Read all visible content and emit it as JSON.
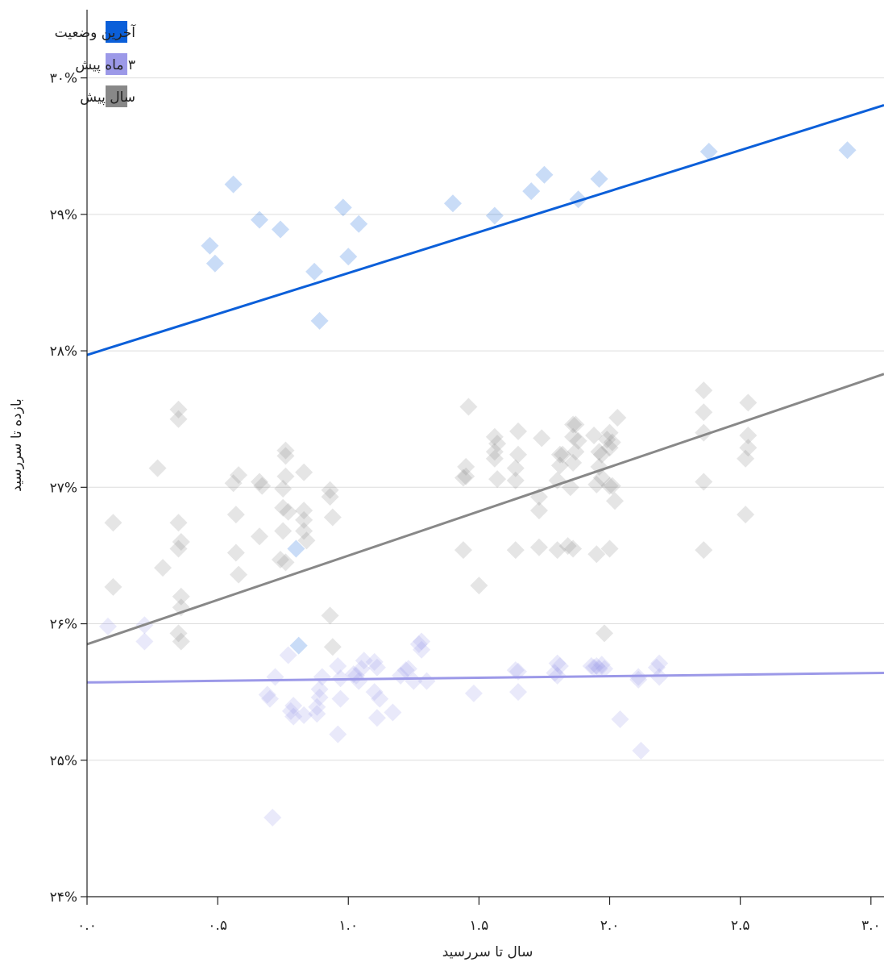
{
  "chart_data": {
    "type": "scatter",
    "xlabel": "سال تا سررسید",
    "ylabel": "بازده تا سررسید",
    "xlim": [
      0,
      3.05
    ],
    "ylim": [
      24,
      30.5
    ],
    "x_ticks": [
      {
        "value": 0.0,
        "label": "۰.۰"
      },
      {
        "value": 0.5,
        "label": "۰.۵"
      },
      {
        "value": 1.0,
        "label": "۱.۰"
      },
      {
        "value": 1.5,
        "label": "۱.۵"
      },
      {
        "value": 2.0,
        "label": "۲.۰"
      },
      {
        "value": 2.5,
        "label": "۲.۵"
      },
      {
        "value": 3.0,
        "label": "۳.۰"
      }
    ],
    "y_ticks": [
      {
        "value": 24,
        "label": "۲۴%"
      },
      {
        "value": 25,
        "label": "۲۵%"
      },
      {
        "value": 26,
        "label": "۲۶%"
      },
      {
        "value": 27,
        "label": "۲۷%"
      },
      {
        "value": 28,
        "label": "۲۸%"
      },
      {
        "value": 29,
        "label": "۲۹%"
      },
      {
        "value": 30,
        "label": "۳۰%"
      }
    ],
    "grid": "horizontal",
    "legend_position": "top-left",
    "series": [
      {
        "name": "آخرین وضعیت",
        "color": "#0b5fd9",
        "marker": "diamond",
        "marker_opacity": 0.22,
        "trend": [
          [
            0,
            27.97
          ],
          [
            3.05,
            29.8
          ]
        ],
        "points": [
          [
            0.47,
            28.77
          ],
          [
            0.49,
            28.64
          ],
          [
            0.56,
            29.22
          ],
          [
            0.66,
            28.96
          ],
          [
            0.74,
            28.89
          ],
          [
            0.87,
            28.58
          ],
          [
            0.89,
            28.22
          ],
          [
            0.98,
            29.05
          ],
          [
            1.0,
            28.69
          ],
          [
            1.04,
            28.93
          ],
          [
            1.4,
            29.08
          ],
          [
            1.56,
            28.99
          ],
          [
            1.7,
            29.17
          ],
          [
            1.75,
            29.29
          ],
          [
            1.88,
            29.11
          ],
          [
            1.96,
            29.26
          ],
          [
            2.38,
            29.46
          ],
          [
            2.91,
            29.47
          ],
          [
            0.8,
            26.55
          ],
          [
            0.81,
            25.84
          ]
        ]
      },
      {
        "name": "۳ ماه پیش",
        "color": "#9c99e8",
        "marker": "diamond",
        "marker_opacity": 0.22,
        "trend": [
          [
            0,
            25.57
          ],
          [
            3.05,
            25.64
          ]
        ],
        "points": [
          [
            0.08,
            25.98
          ],
          [
            0.22,
            25.99
          ],
          [
            0.22,
            25.87
          ],
          [
            0.69,
            25.48
          ],
          [
            0.7,
            25.45
          ],
          [
            0.71,
            24.58
          ],
          [
            0.72,
            25.61
          ],
          [
            0.77,
            25.77
          ],
          [
            0.78,
            25.36
          ],
          [
            0.79,
            25.4
          ],
          [
            0.79,
            25.32
          ],
          [
            0.83,
            25.33
          ],
          [
            0.88,
            25.39
          ],
          [
            0.88,
            25.34
          ],
          [
            0.89,
            25.46
          ],
          [
            0.89,
            25.52
          ],
          [
            0.96,
            25.69
          ],
          [
            0.97,
            25.6
          ],
          [
            0.97,
            25.45
          ],
          [
            1.02,
            25.63
          ],
          [
            1.03,
            25.62
          ],
          [
            1.04,
            25.58
          ],
          [
            1.05,
            25.67
          ],
          [
            1.06,
            25.73
          ],
          [
            1.1,
            25.72
          ],
          [
            1.1,
            25.5
          ],
          [
            1.11,
            25.31
          ],
          [
            1.11,
            25.68
          ],
          [
            1.12,
            25.45
          ],
          [
            1.17,
            25.35
          ],
          [
            1.2,
            25.62
          ],
          [
            1.22,
            25.66
          ],
          [
            1.23,
            25.67
          ],
          [
            1.25,
            25.58
          ],
          [
            1.27,
            25.85
          ],
          [
            1.28,
            25.87
          ],
          [
            1.28,
            25.81
          ],
          [
            1.3,
            25.58
          ],
          [
            1.64,
            25.66
          ],
          [
            1.65,
            25.65
          ],
          [
            1.65,
            25.5
          ],
          [
            1.79,
            25.64
          ],
          [
            1.8,
            25.71
          ],
          [
            1.8,
            25.62
          ],
          [
            1.81,
            25.69
          ],
          [
            1.93,
            25.69
          ],
          [
            1.94,
            25.68
          ],
          [
            1.95,
            25.69
          ],
          [
            1.96,
            25.67
          ],
          [
            1.97,
            25.7
          ],
          [
            1.98,
            25.67
          ],
          [
            2.04,
            25.3
          ],
          [
            2.11,
            25.61
          ],
          [
            2.11,
            25.59
          ],
          [
            2.12,
            25.07
          ],
          [
            2.18,
            25.68
          ],
          [
            2.19,
            25.71
          ],
          [
            2.19,
            25.61
          ],
          [
            0.96,
            25.19
          ],
          [
            0.9,
            25.61
          ],
          [
            1.48,
            25.49
          ]
        ]
      },
      {
        "name": "سال پیش",
        "color": "#888888",
        "marker": "diamond",
        "marker_opacity": 0.22,
        "trend": [
          [
            0,
            25.85
          ],
          [
            3.05,
            27.83
          ]
        ],
        "points": [
          [
            0.1,
            26.74
          ],
          [
            0.1,
            26.27
          ],
          [
            0.27,
            27.14
          ],
          [
            0.29,
            26.41
          ],
          [
            0.35,
            27.5
          ],
          [
            0.35,
            27.57
          ],
          [
            0.35,
            26.55
          ],
          [
            0.35,
            26.74
          ],
          [
            0.35,
            25.93
          ],
          [
            0.36,
            26.6
          ],
          [
            0.36,
            25.87
          ],
          [
            0.36,
            26.12
          ],
          [
            0.36,
            26.2
          ],
          [
            0.56,
            27.03
          ],
          [
            0.57,
            26.8
          ],
          [
            0.57,
            26.52
          ],
          [
            0.58,
            26.36
          ],
          [
            0.58,
            27.09
          ],
          [
            0.66,
            27.04
          ],
          [
            0.66,
            26.64
          ],
          [
            0.67,
            27.01
          ],
          [
            0.74,
            26.47
          ],
          [
            0.75,
            26.85
          ],
          [
            0.75,
            26.68
          ],
          [
            0.75,
            26.99
          ],
          [
            0.76,
            26.45
          ],
          [
            0.76,
            27.27
          ],
          [
            0.76,
            27.23
          ],
          [
            0.76,
            27.08
          ],
          [
            0.77,
            26.82
          ],
          [
            0.83,
            26.83
          ],
          [
            0.83,
            26.68
          ],
          [
            0.83,
            26.76
          ],
          [
            0.83,
            27.11
          ],
          [
            0.84,
            26.61
          ],
          [
            0.93,
            26.98
          ],
          [
            0.93,
            26.93
          ],
          [
            0.94,
            26.78
          ],
          [
            0.93,
            26.06
          ],
          [
            0.94,
            25.83
          ],
          [
            1.44,
            26.54
          ],
          [
            1.44,
            27.07
          ],
          [
            1.45,
            27.08
          ],
          [
            1.45,
            27.15
          ],
          [
            1.46,
            27.59
          ],
          [
            1.5,
            26.28
          ],
          [
            1.56,
            27.37
          ],
          [
            1.56,
            27.26
          ],
          [
            1.56,
            27.21
          ],
          [
            1.57,
            27.06
          ],
          [
            1.57,
            27.32
          ],
          [
            1.64,
            26.54
          ],
          [
            1.64,
            27.05
          ],
          [
            1.64,
            27.14
          ],
          [
            1.65,
            27.24
          ],
          [
            1.65,
            27.41
          ],
          [
            1.73,
            26.93
          ],
          [
            1.73,
            26.83
          ],
          [
            1.73,
            26.56
          ],
          [
            1.74,
            27.36
          ],
          [
            1.8,
            26.54
          ],
          [
            1.8,
            27.05
          ],
          [
            1.81,
            27.24
          ],
          [
            1.81,
            27.16
          ],
          [
            1.82,
            27.24
          ],
          [
            1.84,
            26.57
          ],
          [
            1.85,
            27.0
          ],
          [
            1.86,
            27.37
          ],
          [
            1.86,
            27.46
          ],
          [
            1.86,
            27.18
          ],
          [
            1.86,
            26.55
          ],
          [
            1.87,
            27.26
          ],
          [
            1.87,
            27.46
          ],
          [
            1.88,
            27.34
          ],
          [
            1.94,
            27.38
          ],
          [
            1.95,
            27.02
          ],
          [
            1.95,
            26.51
          ],
          [
            1.96,
            27.15
          ],
          [
            1.96,
            27.26
          ],
          [
            1.97,
            27.07
          ],
          [
            1.97,
            27.24
          ],
          [
            1.98,
            25.93
          ],
          [
            1.99,
            27.35
          ],
          [
            2.0,
            27.4
          ],
          [
            2.0,
            27.01
          ],
          [
            2.01,
            27.01
          ],
          [
            2.0,
            27.29
          ],
          [
            2.0,
            26.55
          ],
          [
            2.01,
            27.33
          ],
          [
            2.02,
            26.9
          ],
          [
            2.03,
            27.51
          ],
          [
            2.36,
            27.71
          ],
          [
            2.36,
            27.55
          ],
          [
            2.36,
            27.04
          ],
          [
            2.36,
            26.54
          ],
          [
            2.36,
            27.4
          ],
          [
            2.52,
            27.21
          ],
          [
            2.52,
            26.8
          ],
          [
            2.53,
            27.38
          ],
          [
            2.53,
            27.29
          ],
          [
            2.53,
            27.62
          ]
        ]
      }
    ]
  }
}
